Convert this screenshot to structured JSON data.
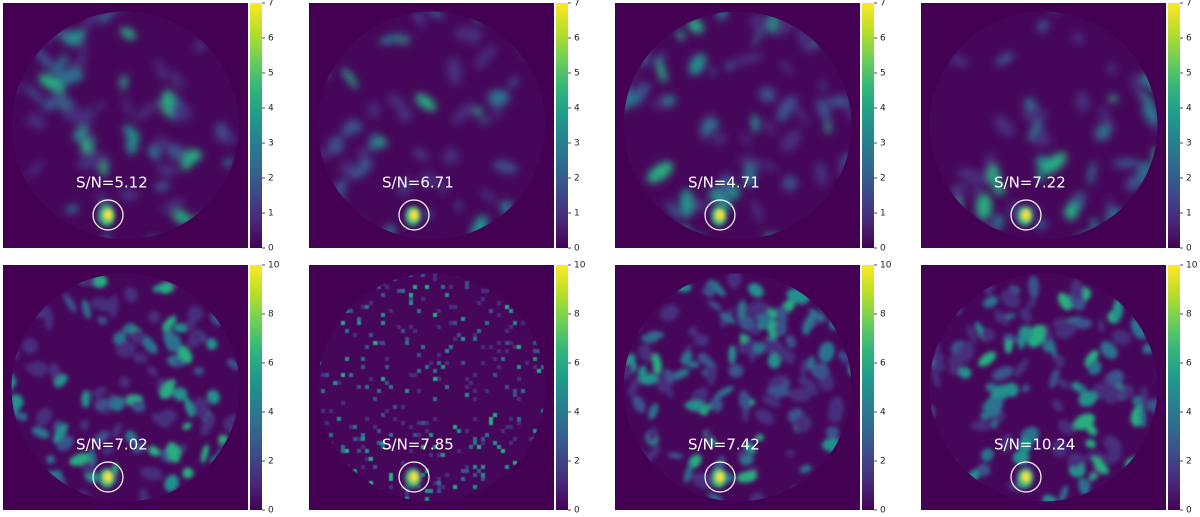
{
  "chart_data": [
    {
      "type": "heatmap",
      "colormap": "viridis",
      "annotation": "S/N=5.12",
      "clim": [
        0,
        7
      ],
      "cticks": [
        0,
        1,
        2,
        3,
        4,
        5,
        6,
        7
      ]
    },
    {
      "type": "heatmap",
      "colormap": "viridis",
      "annotation": "S/N=6.71",
      "clim": [
        0,
        7
      ],
      "cticks": [
        0,
        1,
        2,
        3,
        4,
        5,
        6,
        7
      ]
    },
    {
      "type": "heatmap",
      "colormap": "viridis",
      "annotation": "S/N=4.71",
      "clim": [
        0,
        7
      ],
      "cticks": [
        0,
        1,
        2,
        3,
        4,
        5,
        6,
        7
      ]
    },
    {
      "type": "heatmap",
      "colormap": "viridis",
      "annotation": "S/N=7.22",
      "clim": [
        0,
        7
      ],
      "cticks": [
        0,
        1,
        2,
        3,
        4,
        5,
        6,
        7
      ]
    },
    {
      "type": "heatmap",
      "colormap": "viridis",
      "annotation": "S/N=7.02",
      "clim": [
        0,
        10
      ],
      "cticks": [
        0,
        2,
        4,
        6,
        8,
        10
      ]
    },
    {
      "type": "heatmap",
      "colormap": "viridis",
      "annotation": "S/N=7.85",
      "clim": [
        0,
        10
      ],
      "cticks": [
        0,
        2,
        4,
        6,
        8,
        10
      ]
    },
    {
      "type": "heatmap",
      "colormap": "viridis",
      "annotation": "S/N=7.42",
      "clim": [
        0,
        10
      ],
      "cticks": [
        0,
        2,
        4,
        6,
        8,
        10
      ]
    },
    {
      "type": "heatmap",
      "colormap": "viridis",
      "annotation": "S/N=10.24",
      "clim": [
        0,
        10
      ],
      "cticks": [
        0,
        2,
        4,
        6,
        8,
        10
      ]
    }
  ]
}
